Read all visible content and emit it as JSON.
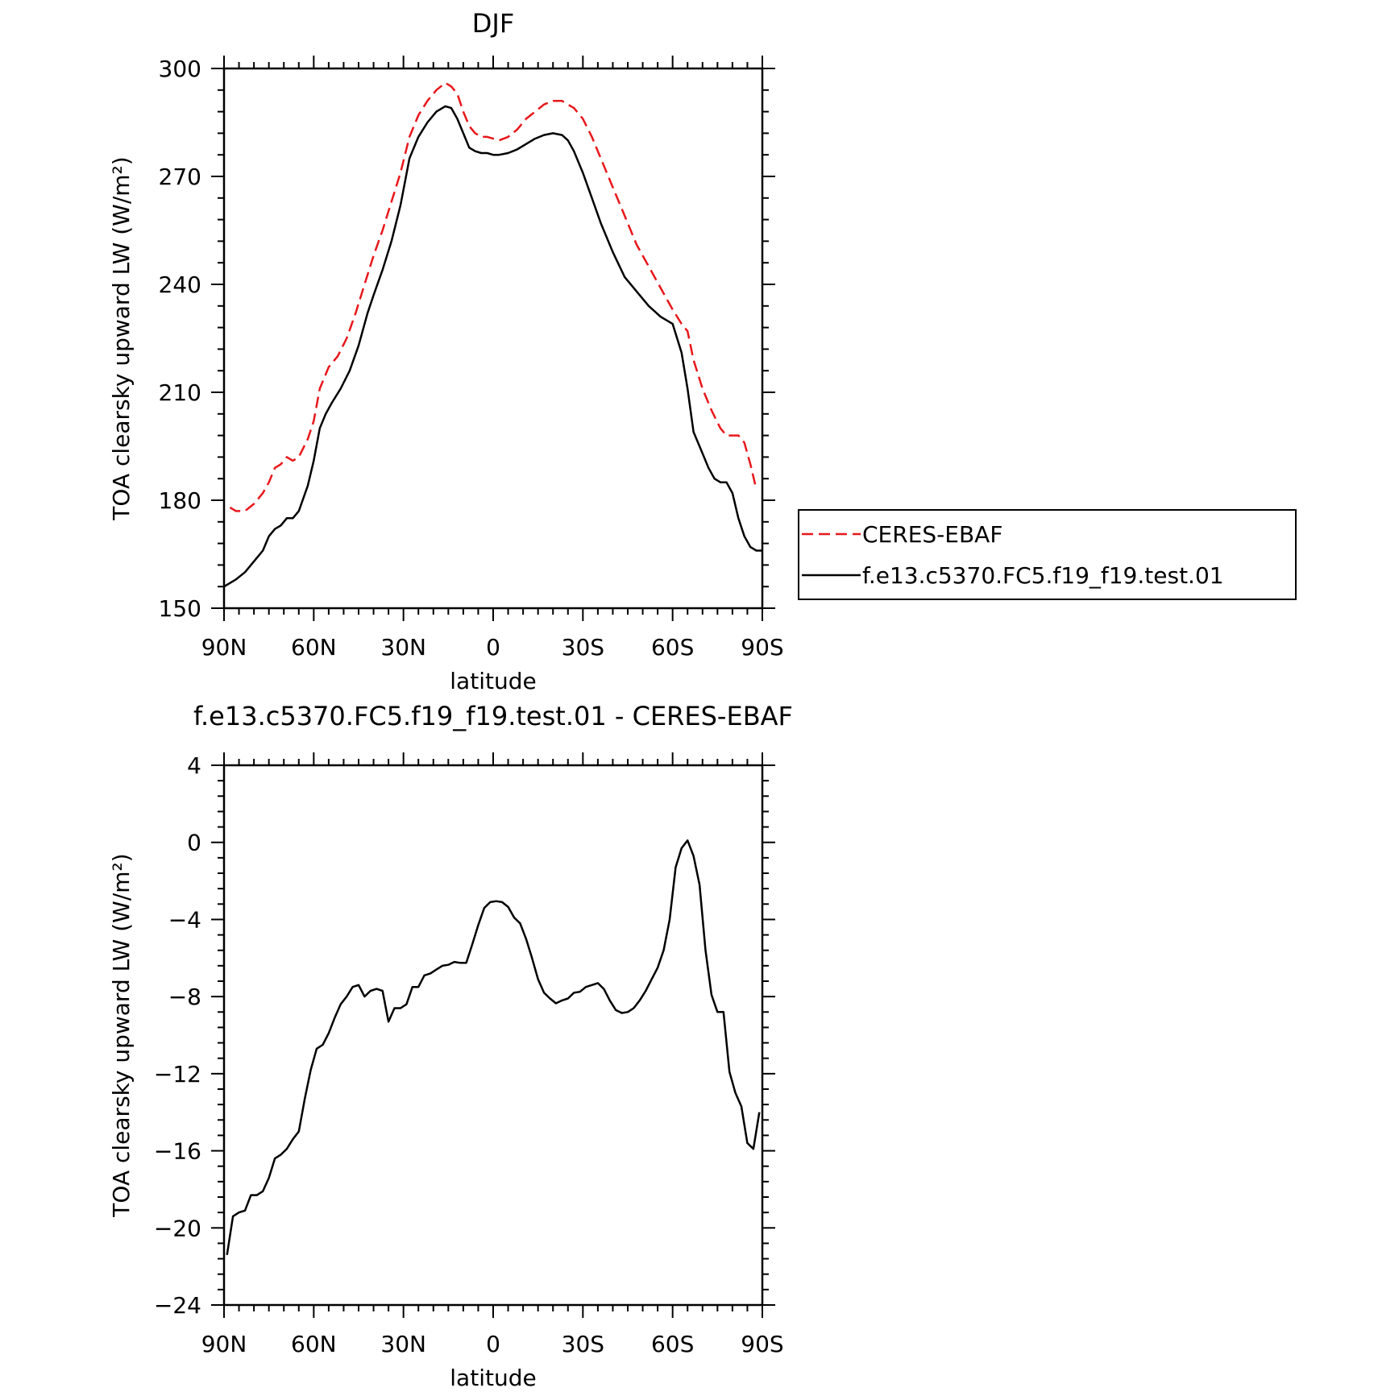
{
  "chart_data": [
    {
      "type": "line",
      "title": "DJF",
      "xlabel": "latitude",
      "ylabel": "TOA clearsky upward LW (W/m²)",
      "xlim": [
        -90,
        90
      ],
      "ylim": [
        150,
        300
      ],
      "xticks": [
        -90,
        -60,
        -30,
        0,
        30,
        60,
        90
      ],
      "xticklabels": [
        "90N",
        "60N",
        "30N",
        "0",
        "30S",
        "60S",
        "90S"
      ],
      "yticks": [
        150,
        180,
        210,
        240,
        270,
        300
      ],
      "yticklabels": [
        "150",
        "180",
        "210",
        "240",
        "270",
        "300"
      ],
      "grid": false,
      "legend": {
        "placement": "right",
        "entries": [
          "CERES-EBAF",
          "f.e13.c5370.FC5.f19_f19.test.01"
        ]
      },
      "series": [
        {
          "name": "CERES-EBAF",
          "color": "#e8171b",
          "dash": "dashed",
          "x": [
            -88,
            -86,
            -83,
            -80,
            -77,
            -75,
            -73,
            -71,
            -69,
            -67,
            -65,
            -62,
            -60,
            -58,
            -55,
            -52,
            -49,
            -46,
            -43,
            -40,
            -37,
            -34,
            -31,
            -28,
            -25,
            -22,
            -19,
            -16,
            -14,
            -12,
            -10,
            -8,
            -6,
            -4,
            -2,
            0,
            2,
            5,
            8,
            11,
            14,
            17,
            20,
            23,
            25,
            27,
            30,
            33,
            36,
            40,
            44,
            48,
            52,
            56,
            60,
            63,
            65,
            67,
            70,
            73,
            76,
            78,
            80,
            82,
            84,
            86,
            88
          ],
          "y": [
            178,
            177,
            177,
            179,
            182,
            185,
            189,
            190,
            192,
            191,
            192,
            197,
            202,
            211,
            217,
            220,
            225,
            232,
            240,
            248,
            255,
            263,
            271,
            281,
            287,
            291,
            294,
            296,
            295,
            293,
            288,
            284,
            282,
            281,
            281,
            280.5,
            280,
            281,
            283,
            286,
            288,
            290,
            291,
            291,
            290,
            289,
            286,
            281,
            275,
            267,
            259,
            251,
            245,
            239,
            233,
            229,
            227,
            219,
            211,
            205,
            200,
            198,
            198,
            198,
            196,
            190,
            183
          ]
        },
        {
          "name": "f.e13.c5370.FC5.f19_f19.test.01",
          "color": "#000000",
          "dash": "solid",
          "x": [
            -90,
            -86,
            -83,
            -80,
            -77,
            -75,
            -73,
            -71,
            -69,
            -67,
            -65,
            -62,
            -60,
            -58,
            -56,
            -54,
            -51,
            -48,
            -45,
            -42,
            -40,
            -37,
            -34,
            -31,
            -28,
            -25,
            -22,
            -19,
            -16,
            -14,
            -12,
            -10,
            -8,
            -6,
            -4,
            -2,
            0,
            2,
            5,
            8,
            11,
            14,
            17,
            20,
            23,
            25,
            27,
            30,
            33,
            36,
            40,
            44,
            48,
            52,
            56,
            60,
            63,
            65,
            67,
            70,
            72,
            74,
            76,
            78,
            80,
            82,
            84,
            86,
            88,
            90
          ],
          "y": [
            156,
            158,
            160,
            163,
            166,
            170,
            172,
            173,
            175,
            175,
            177,
            184,
            191,
            200,
            204,
            207,
            211,
            216,
            223,
            232,
            237,
            244,
            252,
            262,
            275,
            281,
            285,
            288,
            289.5,
            289,
            286,
            282,
            278,
            277,
            276.5,
            276.5,
            276,
            276,
            276.5,
            277.5,
            279,
            280.5,
            281.5,
            282,
            281.5,
            280,
            277,
            271,
            264,
            257,
            249,
            242,
            238,
            234,
            231,
            229,
            221,
            211,
            199,
            193,
            189,
            186,
            185,
            185,
            182,
            175,
            170,
            167,
            166,
            166
          ]
        }
      ]
    },
    {
      "type": "line",
      "title": "f.e13.c5370.FC5.f19_f19.test.01 - CERES-EBAF",
      "xlabel": "latitude",
      "ylabel": "TOA clearsky upward LW (W/m²)",
      "xlim": [
        -90,
        90
      ],
      "ylim": [
        -24,
        4
      ],
      "xticks": [
        -90,
        -60,
        -30,
        0,
        30,
        60,
        90
      ],
      "xticklabels": [
        "90N",
        "60N",
        "30N",
        "0",
        "30S",
        "60S",
        "90S"
      ],
      "yticks": [
        -24,
        -20,
        -16,
        -12,
        -8,
        -4,
        0,
        4
      ],
      "yticklabels": [
        "−24",
        "−20",
        "−16",
        "−12",
        "−8",
        "−4",
        "0",
        "4"
      ],
      "grid": false,
      "series": [
        {
          "color": "#000000",
          "dash": "solid",
          "x": [
            -89,
            -87,
            -85,
            -83,
            -81,
            -79,
            -77,
            -75,
            -73,
            -71,
            -69,
            -67,
            -65,
            -63,
            -61,
            -59,
            -57,
            -55,
            -53,
            -51,
            -49,
            -47,
            -45,
            -43,
            -41,
            -39,
            -37,
            -35,
            -33,
            -31,
            -29,
            -27,
            -25,
            -23,
            -21,
            -19,
            -17,
            -15,
            -13,
            -11,
            -9,
            -7,
            -5,
            -3,
            -1,
            1,
            3,
            5,
            7,
            9,
            11,
            13,
            15,
            17,
            19,
            21,
            23,
            25,
            27,
            29,
            31,
            33,
            35,
            37,
            39,
            41,
            43,
            45,
            47,
            49,
            51,
            53,
            55,
            57,
            59,
            61,
            63,
            65,
            67,
            69,
            71,
            73,
            75,
            77,
            79,
            81,
            83,
            85,
            87,
            89
          ],
          "y": [
            -21.4,
            -19.4,
            -19.2,
            -19.1,
            -18.3,
            -18.3,
            -18.1,
            -17.4,
            -16.4,
            -16.2,
            -15.9,
            -15.4,
            -15.0,
            -13.3,
            -11.8,
            -10.7,
            -10.5,
            -9.9,
            -9.1,
            -8.4,
            -8.0,
            -7.5,
            -7.4,
            -8.0,
            -7.7,
            -7.6,
            -7.7,
            -9.3,
            -8.6,
            -8.6,
            -8.4,
            -7.5,
            -7.5,
            -6.9,
            -6.8,
            -6.6,
            -6.4,
            -6.35,
            -6.2,
            -6.25,
            -6.25,
            -5.3,
            -4.3,
            -3.4,
            -3.1,
            -3.05,
            -3.1,
            -3.35,
            -3.9,
            -4.2,
            -5.0,
            -6.0,
            -7.1,
            -7.8,
            -8.1,
            -8.35,
            -8.2,
            -8.1,
            -7.8,
            -7.75,
            -7.5,
            -7.4,
            -7.3,
            -7.6,
            -8.2,
            -8.7,
            -8.85,
            -8.8,
            -8.6,
            -8.2,
            -7.7,
            -7.1,
            -6.5,
            -5.6,
            -4.0,
            -1.3,
            -0.3,
            0.1,
            -0.7,
            -2.2,
            -5.6,
            -7.9,
            -8.8,
            -8.8,
            -11.9,
            -13.0,
            -13.7,
            -15.6,
            -15.9,
            -14.0
          ]
        }
      ]
    }
  ]
}
